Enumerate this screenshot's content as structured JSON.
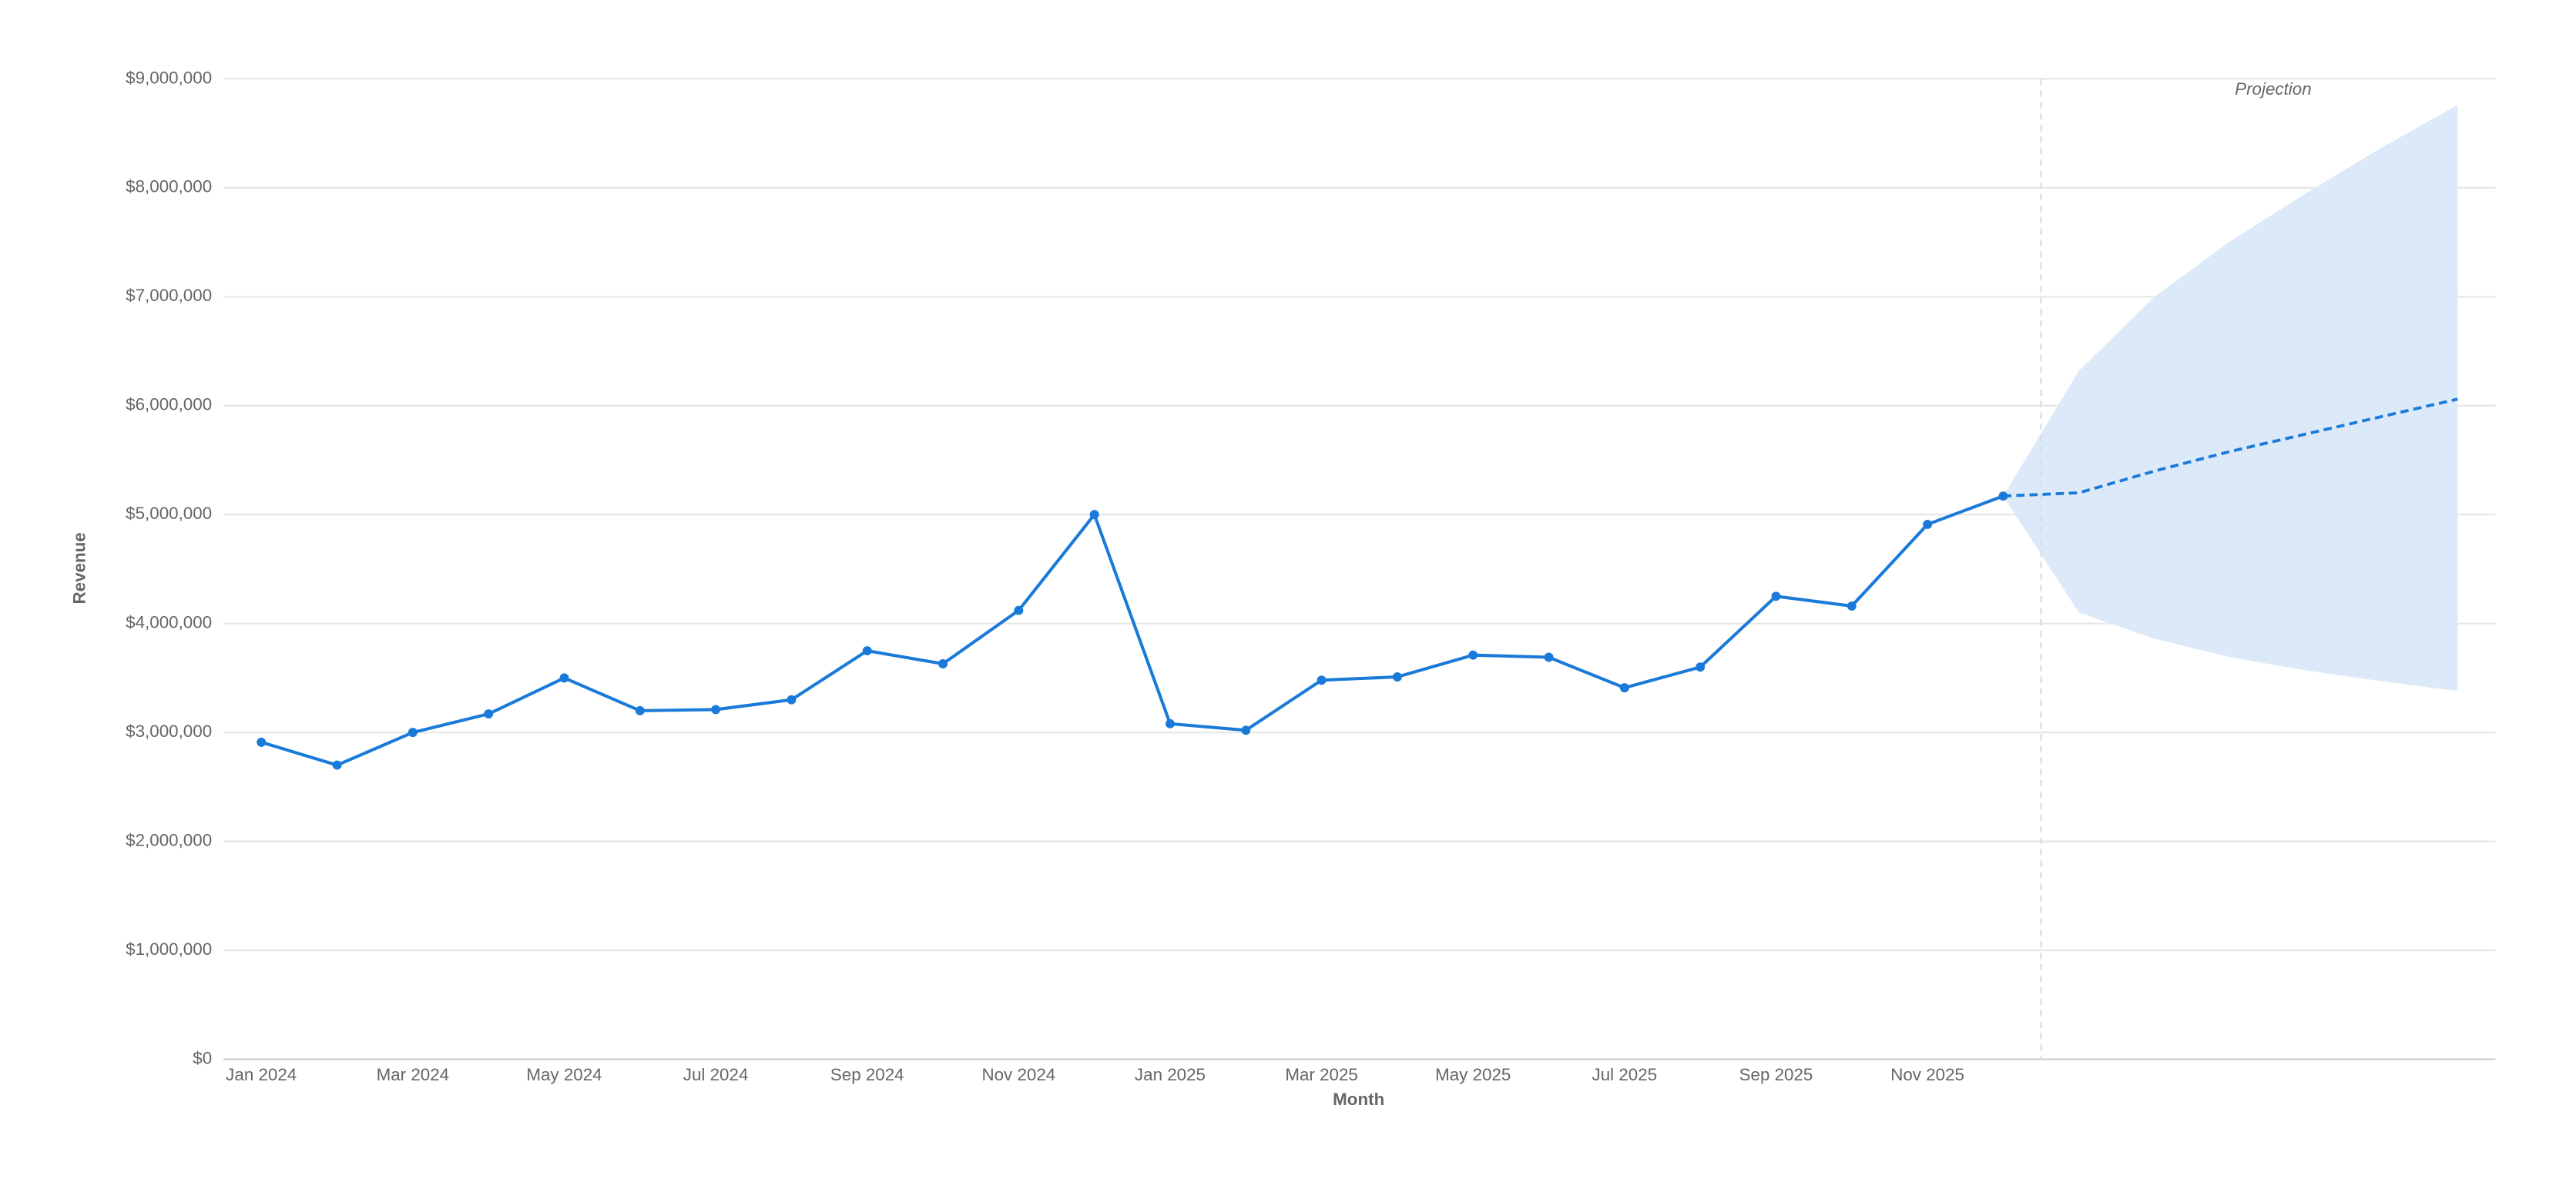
{
  "chart_data": {
    "type": "line",
    "x_label": "Month",
    "y_label": "Revenue",
    "annotation": "Projection",
    "categories": [
      "Jan 2024",
      null,
      "Mar 2024",
      null,
      "May 2024",
      null,
      "Jul 2024",
      null,
      "Sep 2024",
      null,
      "Nov 2024",
      null,
      "Jan 2025",
      null,
      "Mar 2025",
      null,
      "May 2025",
      null,
      "Jul 2025",
      null,
      "Sep 2025",
      null,
      "Nov 2025",
      null,
      null,
      null,
      null,
      null,
      null,
      null
    ],
    "series": [
      {
        "color": "#1a7ad9",
        "values": [
          2910000,
          2700000,
          3000000,
          3170000,
          3500000,
          3200000,
          3210000,
          3300000,
          3750000,
          3630000,
          4120000,
          5000000,
          3080000,
          3020000,
          3480000,
          3510000,
          3710000,
          3690000,
          3410000,
          3600000,
          4250000,
          4160000,
          4910000,
          5170000,
          null,
          null,
          null,
          null,
          null,
          null
        ]
      },
      {
        "color": "#1a7ad9",
        "dashed": true,
        "values": [
          null,
          null,
          null,
          null,
          null,
          null,
          null,
          null,
          null,
          null,
          null,
          null,
          null,
          null,
          null,
          null,
          null,
          null,
          null,
          null,
          null,
          null,
          null,
          5170000,
          5200000,
          5400000,
          5580000,
          5740000,
          5900000,
          6060000
        ]
      }
    ],
    "band": {
      "color": "#dce9f8",
      "upper": [
        null,
        null,
        null,
        null,
        null,
        null,
        null,
        null,
        null,
        null,
        null,
        null,
        null,
        null,
        null,
        null,
        null,
        null,
        null,
        null,
        null,
        null,
        null,
        5170000,
        6320000,
        7000000,
        7510000,
        7950000,
        8370000,
        8760000
      ],
      "lower": [
        null,
        null,
        null,
        null,
        null,
        null,
        null,
        null,
        null,
        null,
        null,
        null,
        null,
        null,
        null,
        null,
        null,
        null,
        null,
        null,
        null,
        null,
        null,
        5170000,
        4100000,
        3860000,
        3690000,
        3570000,
        3470000,
        3380000
      ]
    },
    "ylim": [
      0,
      9000000
    ],
    "yticks": [
      {
        "value": 0,
        "label": "$0"
      },
      {
        "value": 1000000,
        "label": "$1,000,000"
      },
      {
        "value": 2000000,
        "label": "$2,000,000"
      },
      {
        "value": 3000000,
        "label": "$3,000,000"
      },
      {
        "value": 4000000,
        "label": "$4,000,000"
      },
      {
        "value": 5000000,
        "label": "$5,000,000"
      },
      {
        "value": 6000000,
        "label": "$6,000,000"
      },
      {
        "value": 7000000,
        "label": "$7,000,000"
      },
      {
        "value": 8000000,
        "label": "$8,000,000"
      },
      {
        "value": 9000000,
        "label": "$9,000,000"
      }
    ],
    "grid": true
  }
}
